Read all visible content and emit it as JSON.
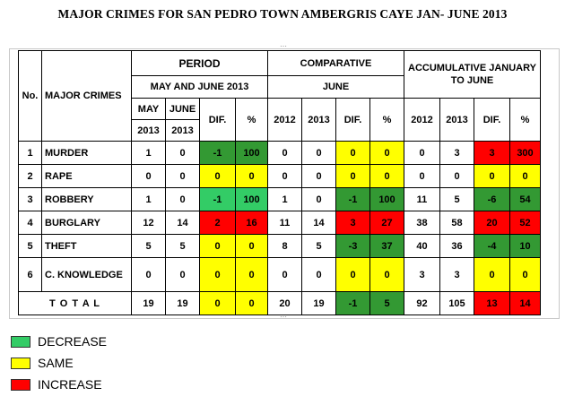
{
  "title": "MAJOR CRIMES FOR SAN PEDRO TOWN AMBERGRIS CAYE JAN- JUNE 2013",
  "headers": {
    "no": "No.",
    "crimes": "MAJOR CRIMES",
    "period": "PERIOD",
    "period_sub": "MAY AND JUNE 2013",
    "comparative": "COMPARATIVE",
    "comparative_sub": "JUNE",
    "accumulative": "ACCUMULATIVE JANUARY TO JUNE",
    "may": "MAY",
    "june": "JUNE",
    "year_2013": "2013",
    "year_2012": "2012",
    "dif": "DIF.",
    "pct": "%"
  },
  "rows": [
    {
      "no": "1",
      "crime": "MURDER",
      "may": "1",
      "june": "0",
      "p_dif": "-1",
      "p_pct": "100",
      "c_2012": "0",
      "c_2013": "0",
      "c_dif": "0",
      "c_pct": "0",
      "a_2012": "0",
      "a_2013": "3",
      "a_dif": "3",
      "a_pct": "300"
    },
    {
      "no": "2",
      "crime": "RAPE",
      "may": "0",
      "june": "0",
      "p_dif": "0",
      "p_pct": "0",
      "c_2012": "0",
      "c_2013": "0",
      "c_dif": "0",
      "c_pct": "0",
      "a_2012": "0",
      "a_2013": "0",
      "a_dif": "0",
      "a_pct": "0"
    },
    {
      "no": "3",
      "crime": "ROBBERY",
      "may": "1",
      "june": "0",
      "p_dif": "-1",
      "p_pct": "100",
      "c_2012": "1",
      "c_2013": "0",
      "c_dif": "-1",
      "c_pct": "100",
      "a_2012": "11",
      "a_2013": "5",
      "a_dif": "-6",
      "a_pct": "54"
    },
    {
      "no": "4",
      "crime": "BURGLARY",
      "may": "12",
      "june": "14",
      "p_dif": "2",
      "p_pct": "16",
      "c_2012": "11",
      "c_2013": "14",
      "c_dif": "3",
      "c_pct": "27",
      "a_2012": "38",
      "a_2013": "58",
      "a_dif": "20",
      "a_pct": "52"
    },
    {
      "no": "5",
      "crime": "THEFT",
      "may": "5",
      "june": "5",
      "p_dif": "0",
      "p_pct": "0",
      "c_2012": "8",
      "c_2013": "5",
      "c_dif": "-3",
      "c_pct": "37",
      "a_2012": "40",
      "a_2013": "36",
      "a_dif": "-4",
      "a_pct": "10"
    },
    {
      "no": "6",
      "crime": "C. KNOWLEDGE",
      "may": "0",
      "june": "0",
      "p_dif": "0",
      "p_pct": "0",
      "c_2012": "0",
      "c_2013": "0",
      "c_dif": "0",
      "c_pct": "0",
      "a_2012": "3",
      "a_2013": "3",
      "a_dif": "0",
      "a_pct": "0"
    }
  ],
  "total": {
    "label": "T O T A L",
    "may": "19",
    "june": "19",
    "p_dif": "0",
    "p_pct": "0",
    "c_2012": "20",
    "c_2013": "19",
    "c_dif": "-1",
    "c_pct": "5",
    "a_2012": "92",
    "a_2013": "105",
    "a_dif": "13",
    "a_pct": "14"
  },
  "legend": [
    {
      "label": "DECREASE",
      "color": "#33cc66"
    },
    {
      "label": "SAME",
      "color": "#ffff00"
    },
    {
      "label": "INCREASE",
      "color": "#ff0000"
    }
  ],
  "colors": {
    "red": "#ff0000",
    "yellow": "#ffff00",
    "green": "#00b050",
    "dark_green": "#339933",
    "light_green": "#33cc66"
  }
}
